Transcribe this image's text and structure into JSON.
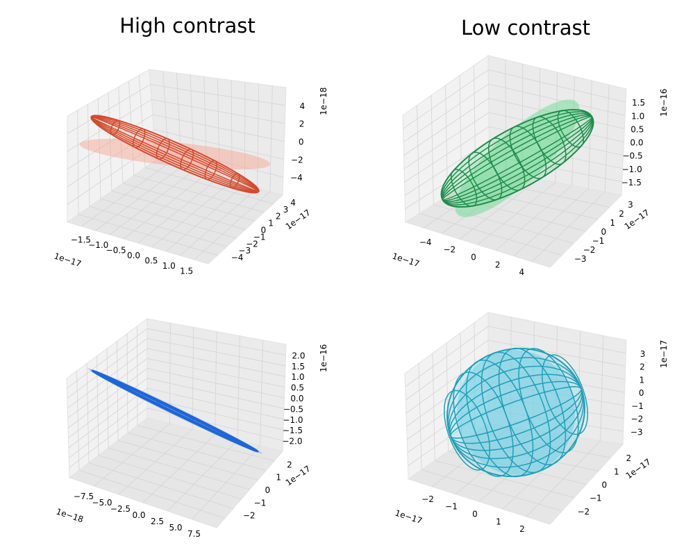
{
  "figure": {
    "column_titles": [
      "High contrast",
      "Low contrast"
    ]
  },
  "chart_data": [
    {
      "type": "3d-ellipsoid",
      "panel": "top-left",
      "color": "#d24a2c",
      "cloud_color": "#f7a08c",
      "x_ticks": [
        "−1.5",
        "−1.0",
        "−0.5",
        "0.0",
        "0.5",
        "1.0",
        "1.5"
      ],
      "x_exponent": "1e−17",
      "y_ticks": [
        "−4",
        "−3",
        "−2",
        "−1",
        "0",
        "1",
        "2",
        "3",
        "4"
      ],
      "y_exponent": "1e−17",
      "z_ticks": [
        "−4",
        "−2",
        "0",
        "2",
        "4"
      ],
      "z_exponent": "1e−18",
      "xlim": [
        -1.6,
        1.6
      ],
      "ylim": [
        -4.2,
        4.2
      ],
      "zlim": [
        -5.5,
        5.5
      ]
    },
    {
      "type": "3d-ellipsoid",
      "panel": "top-right",
      "color": "#1e8c4a",
      "cloud_color": "#5fd98a",
      "x_ticks": [
        "−4",
        "−2",
        "0",
        "2",
        "4"
      ],
      "x_exponent": "1e−17",
      "y_ticks": [
        "−3",
        "−2",
        "−1",
        "0",
        "1",
        "2",
        "3"
      ],
      "y_exponent": "1e−17",
      "z_ticks": [
        "−1.5",
        "−1.0",
        "−0.5",
        "0.0",
        "0.5",
        "1.0",
        "1.5"
      ],
      "z_exponent": "1e−16",
      "xlim": [
        -5,
        5
      ],
      "ylim": [
        -3.5,
        3.5
      ],
      "zlim": [
        -2,
        2
      ]
    },
    {
      "type": "3d-ellipsoid",
      "panel": "bottom-left",
      "color": "#1f66d6",
      "cloud_color": "#6fa8f5",
      "x_ticks": [
        "−7.5",
        "−5.0",
        "−2.5",
        "0.0",
        "2.5",
        "5.0",
        "7.5"
      ],
      "x_exponent": "1e−18",
      "y_ticks": [
        "−2",
        "−1",
        "0",
        "1",
        "2"
      ],
      "y_exponent": "1e−17",
      "z_ticks": [
        "−2.0",
        "−1.5",
        "−1.0",
        "−0.5",
        "0.0",
        "0.5",
        "1.0",
        "1.5",
        "2.0"
      ],
      "z_exponent": "1e−16",
      "xlim": [
        -8.5,
        8.5
      ],
      "ylim": [
        -2.5,
        2.5
      ],
      "zlim": [
        -2.3,
        2.3
      ]
    },
    {
      "type": "3d-ellipsoid",
      "panel": "bottom-right",
      "color": "#1f9fb8",
      "cloud_color": "#5ccde6",
      "x_ticks": [
        "−2",
        "−1",
        "0",
        "1",
        "2"
      ],
      "x_exponent": "1e−17",
      "y_ticks": [
        "−2",
        "−1",
        "0",
        "1",
        "2"
      ],
      "y_exponent": "1e−17",
      "z_ticks": [
        "−3",
        "−2",
        "−1",
        "0",
        "1",
        "2",
        "3"
      ],
      "z_exponent": "1e−17",
      "xlim": [
        -2.5,
        2.5
      ],
      "ylim": [
        -2.5,
        2.5
      ],
      "zlim": [
        -3.8,
        3.8
      ]
    }
  ]
}
